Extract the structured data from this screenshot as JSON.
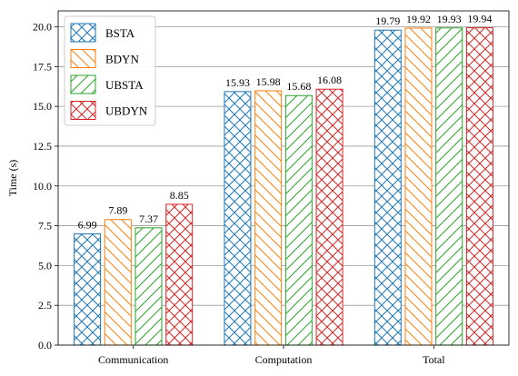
{
  "chart_data": {
    "type": "bar",
    "categories": [
      "Communication",
      "Computation",
      "Total"
    ],
    "series": [
      {
        "name": "BSTA",
        "values": [
          6.99,
          15.93,
          19.79
        ],
        "color": "#1f77b4",
        "hatch": "crosshatch"
      },
      {
        "name": "BDYN",
        "values": [
          7.89,
          15.98,
          19.92
        ],
        "color": "#ff7f0e",
        "hatch": "back-diagonal"
      },
      {
        "name": "UBSTA",
        "values": [
          7.37,
          15.68,
          19.93
        ],
        "color": "#2ca02c",
        "hatch": "forward-diagonal"
      },
      {
        "name": "UBDYN",
        "values": [
          8.85,
          16.08,
          19.94
        ],
        "color": "#d62728",
        "hatch": "crosshatch"
      }
    ],
    "data_labels": [
      [
        "6.99",
        "15.93",
        "19.79"
      ],
      [
        "7.89",
        "15.98",
        "19.92"
      ],
      [
        "7.37",
        "15.68",
        "19.93"
      ],
      [
        "8.85",
        "16.08",
        "19.94"
      ]
    ],
    "xlabel": "",
    "ylabel": "Time (s)",
    "ylim": [
      0,
      21
    ],
    "yticks": [
      "0.0",
      "2.5",
      "5.0",
      "7.5",
      "10.0",
      "12.5",
      "15.0",
      "17.5",
      "20.0"
    ],
    "grid": "horizontal",
    "legend_position": "top-left"
  }
}
